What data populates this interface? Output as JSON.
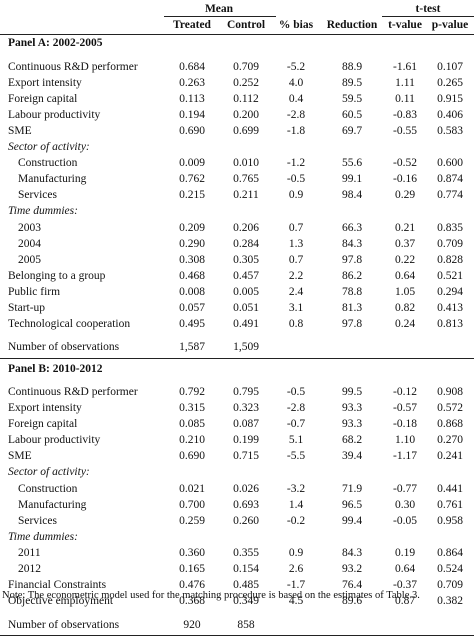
{
  "header": {
    "group_mean": "Mean",
    "group_ttest": "t-test",
    "columns": [
      "Treated",
      "Control",
      "% bias",
      "Reduction",
      "t-value",
      "p-value"
    ]
  },
  "panel_a": {
    "title": "Panel A: 2002-2005",
    "rows": [
      {
        "label": "Continuous R&D performer",
        "style": "normal",
        "values": [
          "0.684",
          "0.709",
          "-5.2",
          "88.9",
          "-1.61",
          "0.107"
        ]
      },
      {
        "label": "Export intensity",
        "style": "normal",
        "values": [
          "0.263",
          "0.252",
          "4.0",
          "89.5",
          "1.11",
          "0.265"
        ]
      },
      {
        "label": "Foreign capital",
        "style": "normal",
        "values": [
          "0.113",
          "0.112",
          "0.4",
          "59.5",
          "0.11",
          "0.915"
        ]
      },
      {
        "label": "Labour productivity",
        "style": "normal",
        "values": [
          "0.194",
          "0.200",
          "-2.8",
          "60.5",
          "-0.83",
          "0.406"
        ]
      },
      {
        "label": "SME",
        "style": "normal",
        "values": [
          "0.690",
          "0.699",
          "-1.8",
          "69.7",
          "-0.55",
          "0.583"
        ]
      },
      {
        "label": "Sector of activity:",
        "style": "italic",
        "values": []
      },
      {
        "label": "Construction",
        "style": "indent",
        "values": [
          "0.009",
          "0.010",
          "-1.2",
          "55.6",
          "-0.52",
          "0.600"
        ]
      },
      {
        "label": "Manufacturing",
        "style": "indent",
        "values": [
          "0.762",
          "0.765",
          "-0.5",
          "99.1",
          "-0.16",
          "0.874"
        ]
      },
      {
        "label": "Services",
        "style": "indent",
        "values": [
          "0.215",
          "0.211",
          "0.9",
          "98.4",
          "0.29",
          "0.774"
        ]
      },
      {
        "label": "Time dummies:",
        "style": "italic",
        "values": []
      },
      {
        "label": "2003",
        "style": "indent",
        "values": [
          "0.209",
          "0.206",
          "0.7",
          "66.3",
          "0.21",
          "0.835"
        ]
      },
      {
        "label": "2004",
        "style": "indent",
        "values": [
          "0.290",
          "0.284",
          "1.3",
          "84.3",
          "0.37",
          "0.709"
        ]
      },
      {
        "label": "2005",
        "style": "indent",
        "values": [
          "0.308",
          "0.305",
          "0.7",
          "97.8",
          "0.22",
          "0.828"
        ]
      },
      {
        "label": "Belonging to a group",
        "style": "normal",
        "values": [
          "0.468",
          "0.457",
          "2.2",
          "86.2",
          "0.64",
          "0.521"
        ]
      },
      {
        "label": "Public firm",
        "style": "normal",
        "values": [
          "0.008",
          "0.005",
          "2.4",
          "78.8",
          "1.05",
          "0.294"
        ]
      },
      {
        "label": "Start-up",
        "style": "normal",
        "values": [
          "0.057",
          "0.051",
          "3.1",
          "81.3",
          "0.82",
          "0.413"
        ]
      },
      {
        "label": "Technological cooperation",
        "style": "normal",
        "values": [
          "0.495",
          "0.491",
          "0.8",
          "97.8",
          "0.24",
          "0.813"
        ]
      }
    ],
    "obs_label": "Number of observations",
    "obs_values": [
      "1,587",
      "1,509"
    ]
  },
  "panel_b": {
    "title": "Panel B: 2010-2012",
    "rows": [
      {
        "label": "Continuous R&D performer",
        "style": "normal",
        "values": [
          "0.792",
          "0.795",
          "-0.5",
          "99.5",
          "-0.12",
          "0.908"
        ]
      },
      {
        "label": "Export intensity",
        "style": "normal",
        "values": [
          "0.315",
          "0.323",
          "-2.8",
          "93.3",
          "-0.57",
          "0.572"
        ]
      },
      {
        "label": "Foreign capital",
        "style": "normal",
        "values": [
          "0.085",
          "0.087",
          "-0.7",
          "93.3",
          "-0.18",
          "0.868"
        ]
      },
      {
        "label": "Labour productivity",
        "style": "normal",
        "values": [
          "0.210",
          "0.199",
          "5.1",
          "68.2",
          "1.10",
          "0.270"
        ]
      },
      {
        "label": "SME",
        "style": "normal",
        "values": [
          "0.690",
          "0.715",
          "-5.5",
          "39.4",
          "-1.17",
          "0.241"
        ]
      },
      {
        "label": "Sector of activity:",
        "style": "italic",
        "values": []
      },
      {
        "label": "Construction",
        "style": "indent",
        "values": [
          "0.021",
          "0.026",
          "-3.2",
          "71.9",
          "-0.77",
          "0.441"
        ]
      },
      {
        "label": "Manufacturing",
        "style": "indent",
        "values": [
          "0.700",
          "0.693",
          "1.4",
          "96.5",
          "0.30",
          "0.761"
        ]
      },
      {
        "label": "Services",
        "style": "indent",
        "values": [
          "0.259",
          "0.260",
          "-0.2",
          "99.4",
          "-0.05",
          "0.958"
        ]
      },
      {
        "label": "Time dummies:",
        "style": "italic",
        "values": []
      },
      {
        "label": "2011",
        "style": "indent",
        "values": [
          "0.360",
          "0.355",
          "0.9",
          "84.3",
          "0.19",
          "0.864"
        ]
      },
      {
        "label": "2012",
        "style": "indent",
        "values": [
          "0.165",
          "0.154",
          "2.6",
          "93.2",
          "0.64",
          "0.524"
        ]
      },
      {
        "label": "Financial Constraints",
        "style": "normal",
        "values": [
          "0.476",
          "0.485",
          "-1.7",
          "76.4",
          "-0.37",
          "0.709"
        ]
      },
      {
        "label": "Objective employment",
        "style": "normal",
        "values": [
          "0.368",
          "0.349",
          "4.5",
          "89.6",
          "0.87",
          "0.382"
        ]
      }
    ],
    "obs_label": "Number of observations",
    "obs_values": [
      "920",
      "858"
    ]
  },
  "note": "Note: The econometric model used for the matching procedure is based on the estimates of Table 3."
}
